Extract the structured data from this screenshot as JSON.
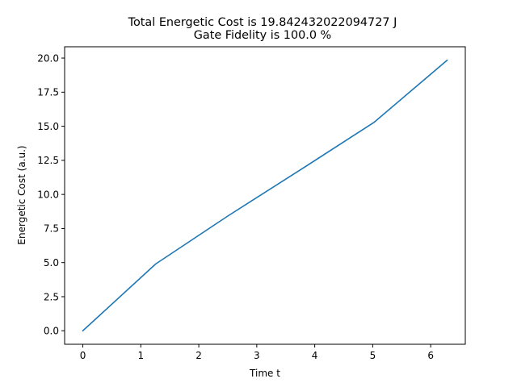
{
  "chart_data": {
    "type": "line",
    "title": "Total Energetic Cost is 19.842432022094727 J",
    "subtitle": "Gate Fidelity is 100.0 %",
    "xlabel": "Time t",
    "ylabel": "Energetic Cost (a.u.)",
    "xlim": [
      -0.314,
      6.597
    ],
    "ylim": [
      -0.99,
      20.83
    ],
    "grid": false,
    "x_ticks": [
      0,
      1,
      2,
      3,
      4,
      5,
      6
    ],
    "x_tick_labels": [
      "0",
      "1",
      "2",
      "3",
      "4",
      "5",
      "6"
    ],
    "y_ticks": [
      0,
      2.5,
      5,
      7.5,
      10,
      12.5,
      15,
      17.5,
      20
    ],
    "y_tick_labels": [
      "0.0",
      "2.5",
      "5.0",
      "7.5",
      "10.0",
      "12.5",
      "15.0",
      "17.5",
      "20.0"
    ],
    "series": [
      {
        "color": "#1f77b4",
        "x": [
          0,
          1.257,
          2.513,
          3.77,
          5.027,
          6.283
        ],
        "y": [
          0,
          4.9,
          8.45,
          11.85,
          15.3,
          19.84
        ]
      }
    ]
  }
}
